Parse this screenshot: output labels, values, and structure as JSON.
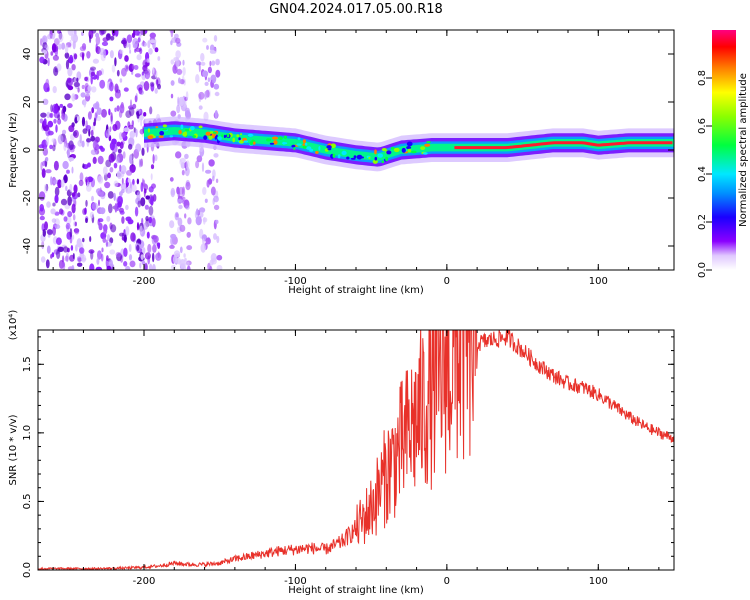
{
  "title": "GN04.2024.017.05.00.R18",
  "colors": {
    "signal": "#e8312a",
    "axis": "#000000",
    "ridge": "#ff1a2e",
    "scatter": "#7a00e6"
  },
  "chart_data": [
    {
      "type": "heatmap",
      "title": "GN04.2024.017.05.00.R18",
      "xlabel": "Height of straight line (km)",
      "ylabel": "Frequency (Hz)",
      "xlim": [
        -270,
        150
      ],
      "ylim": [
        -50,
        50
      ],
      "xticks": [
        -200,
        -100,
        0,
        100
      ],
      "yticks": [
        -40,
        -20,
        0,
        20,
        40
      ],
      "colorbar": {
        "label": "Normalized spectral amplitude",
        "range": [
          0,
          1
        ],
        "ticks": [
          "0.0",
          "0.2",
          "0.4",
          "0.6",
          "0.8"
        ]
      },
      "ridge": {
        "x": [
          -200,
          -180,
          -160,
          -140,
          -120,
          -100,
          -80,
          -60,
          -45,
          -30,
          -10,
          10,
          40,
          70,
          90,
          100,
          120,
          150
        ],
        "y": [
          7,
          8,
          7,
          5,
          4,
          3,
          0,
          -2,
          -3,
          0,
          1,
          1,
          1,
          3,
          3,
          2,
          3,
          3
        ]
      }
    },
    {
      "type": "line",
      "xlabel": "Height of straight line (km)",
      "ylabel": "SNR (10 * v/v)",
      "multiplier": "(x10⁴)",
      "xlim": [
        -270,
        150
      ],
      "ylim": [
        0,
        1.75
      ],
      "xticks": [
        -200,
        -100,
        0,
        100
      ],
      "yticks": [
        "0.0",
        "0.5",
        "1.0",
        "1.5"
      ],
      "series": [
        {
          "x": [
            -270,
            -250,
            -230,
            -210,
            -200,
            -190,
            -180,
            -170,
            -160,
            -150,
            -140,
            -130,
            -120,
            -110,
            -100,
            -90,
            -80,
            -70,
            -60,
            -50,
            -40,
            -30,
            -20,
            -10,
            0,
            10,
            20,
            30,
            40,
            50,
            60,
            70,
            80,
            90,
            100,
            110,
            120,
            130,
            140,
            150
          ],
          "values": [
            0.01,
            0.01,
            0.01,
            0.015,
            0.02,
            0.03,
            0.05,
            0.04,
            0.04,
            0.05,
            0.08,
            0.1,
            0.12,
            0.14,
            0.15,
            0.16,
            0.15,
            0.2,
            0.3,
            0.45,
            0.7,
            0.9,
            1.1,
            1.3,
            1.5,
            1.6,
            1.65,
            1.68,
            1.7,
            1.6,
            1.5,
            1.42,
            1.36,
            1.33,
            1.28,
            1.2,
            1.12,
            1.05,
            1.0,
            0.96
          ]
        }
      ]
    }
  ]
}
